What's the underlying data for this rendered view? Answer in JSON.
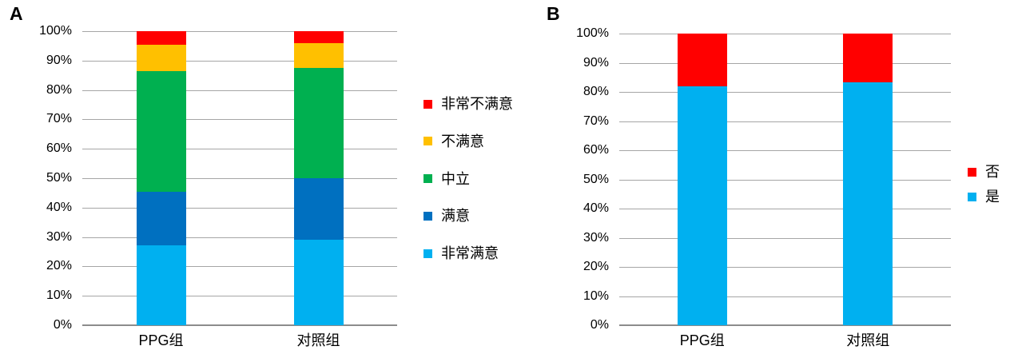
{
  "figure": {
    "background": "#FFFFFF",
    "grid_color": "#A6A6A6",
    "axis_color": "#8C8C8C",
    "text_color": "#000000"
  },
  "chart_data": [
    {
      "panel_label": "A",
      "type": "bar",
      "subtype": "100%-stacked-column",
      "categories": [
        "PPG组",
        "对照组"
      ],
      "series": [
        {
          "name": "非常满意",
          "color": "#00B0F0",
          "values": [
            27.3,
            29.2
          ]
        },
        {
          "name": "满意",
          "color": "#0070C0",
          "values": [
            18.2,
            20.8
          ]
        },
        {
          "name": "中立",
          "color": "#00B050",
          "values": [
            40.9,
            37.5
          ]
        },
        {
          "name": "不满意",
          "color": "#FFC000",
          "values": [
            9.1,
            8.3
          ]
        },
        {
          "name": "非常不满意",
          "color": "#FF0000",
          "values": [
            4.5,
            4.2
          ]
        }
      ],
      "y_ticks": [
        "0%",
        "10%",
        "20%",
        "30%",
        "40%",
        "50%",
        "60%",
        "70%",
        "80%",
        "90%",
        "100%"
      ],
      "ylim": [
        0,
        100
      ],
      "grid": true,
      "legend_position": "right",
      "legend_order_top_to_bottom": [
        "非常不满意",
        "不满意",
        "中立",
        "满意",
        "非常满意"
      ]
    },
    {
      "panel_label": "B",
      "type": "bar",
      "subtype": "100%-stacked-column",
      "categories": [
        "PPG组",
        "对照组"
      ],
      "series": [
        {
          "name": "是",
          "color": "#00B0F0",
          "values": [
            81.8,
            83.3
          ]
        },
        {
          "name": "否",
          "color": "#FF0000",
          "values": [
            18.2,
            16.7
          ]
        }
      ],
      "y_ticks": [
        "0%",
        "10%",
        "20%",
        "30%",
        "40%",
        "50%",
        "60%",
        "70%",
        "80%",
        "90%",
        "100%"
      ],
      "ylim": [
        0,
        100
      ],
      "grid": true,
      "legend_position": "right",
      "legend_order_top_to_bottom": [
        "否",
        "是"
      ]
    }
  ]
}
